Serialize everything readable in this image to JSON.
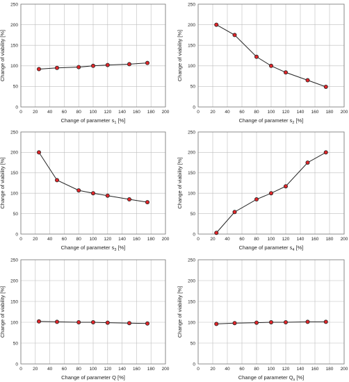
{
  "chart_data": [
    {
      "type": "line",
      "xlabel": "Change of parameter s",
      "xlabel_sub": "1",
      "xlabel_unit": " [%]",
      "ylabel": "Change of viability [%]",
      "xlim": [
        0,
        200
      ],
      "ylim": [
        0,
        250
      ],
      "xticks": [
        0,
        20,
        40,
        60,
        80,
        100,
        120,
        140,
        160,
        180,
        200
      ],
      "yticks": [
        0,
        50,
        100,
        150,
        200,
        250
      ],
      "grid": true,
      "marker_color": "#e0262a",
      "x": [
        25,
        50,
        80,
        100,
        120,
        150,
        175
      ],
      "y": [
        92,
        95,
        97,
        100,
        102,
        104,
        107
      ]
    },
    {
      "type": "line",
      "xlabel": "Change of parameter s",
      "xlabel_sub": "2",
      "xlabel_unit": " [%]",
      "ylabel": "Change of viability [%]",
      "xlim": [
        0,
        200
      ],
      "ylim": [
        0,
        250
      ],
      "xticks": [
        0,
        20,
        40,
        60,
        80,
        100,
        120,
        140,
        160,
        180,
        200
      ],
      "yticks": [
        0,
        50,
        100,
        150,
        200,
        250
      ],
      "grid": true,
      "marker_color": "#e0262a",
      "x": [
        25,
        50,
        80,
        100,
        120,
        150,
        175
      ],
      "y": [
        200,
        175,
        122,
        100,
        84,
        65,
        49
      ]
    },
    {
      "type": "line",
      "xlabel": "Change of parameter s",
      "xlabel_sub": "3",
      "xlabel_unit": " [%]",
      "ylabel": "Change of viability [%]",
      "xlim": [
        0,
        200
      ],
      "ylim": [
        0,
        250
      ],
      "xticks": [
        0,
        20,
        40,
        60,
        80,
        100,
        120,
        140,
        160,
        180,
        200
      ],
      "yticks": [
        0,
        50,
        100,
        150,
        200,
        250
      ],
      "grid": true,
      "marker_color": "#e0262a",
      "x": [
        25,
        50,
        80,
        100,
        120,
        150,
        175
      ],
      "y": [
        200,
        132,
        107,
        100,
        94,
        85,
        78
      ]
    },
    {
      "type": "line",
      "xlabel": "Change of parameter s",
      "xlabel_sub": "4",
      "xlabel_unit": " [%]",
      "ylabel": "Change of viability [%]",
      "xlim": [
        0,
        200
      ],
      "ylim": [
        0,
        250
      ],
      "xticks": [
        0,
        20,
        40,
        60,
        80,
        100,
        120,
        140,
        160,
        180,
        200
      ],
      "yticks": [
        0,
        50,
        100,
        150,
        200,
        250
      ],
      "grid": true,
      "marker_color": "#e0262a",
      "x": [
        25,
        50,
        80,
        100,
        120,
        150,
        175
      ],
      "y": [
        3,
        54,
        85,
        100,
        117,
        175,
        200
      ]
    },
    {
      "type": "line",
      "xlabel": "Change of parameter Q",
      "xlabel_sub": "",
      "xlabel_unit": " [%]",
      "ylabel": "Change of viability [%]",
      "xlim": [
        0,
        200
      ],
      "ylim": [
        0,
        250
      ],
      "xticks": [
        0,
        20,
        40,
        60,
        80,
        100,
        120,
        140,
        160,
        180,
        200
      ],
      "yticks": [
        0,
        50,
        100,
        150,
        200,
        250
      ],
      "grid": true,
      "marker_color": "#e0262a",
      "x": [
        25,
        50,
        80,
        100,
        120,
        150,
        175
      ],
      "y": [
        102,
        101,
        100,
        100,
        99,
        98,
        97
      ]
    },
    {
      "type": "line",
      "xlabel": "Change of parameter Q",
      "xlabel_sub": "s",
      "xlabel_unit": " [%]",
      "ylabel": "Change of viability [%]",
      "xlim": [
        0,
        200
      ],
      "ylim": [
        0,
        250
      ],
      "xticks": [
        0,
        20,
        40,
        60,
        80,
        100,
        120,
        140,
        160,
        180,
        200
      ],
      "yticks": [
        0,
        50,
        100,
        150,
        200,
        250
      ],
      "grid": true,
      "marker_color": "#e0262a",
      "x": [
        25,
        50,
        80,
        100,
        120,
        150,
        175
      ],
      "y": [
        96,
        98,
        99,
        100,
        100,
        101,
        101
      ]
    }
  ]
}
